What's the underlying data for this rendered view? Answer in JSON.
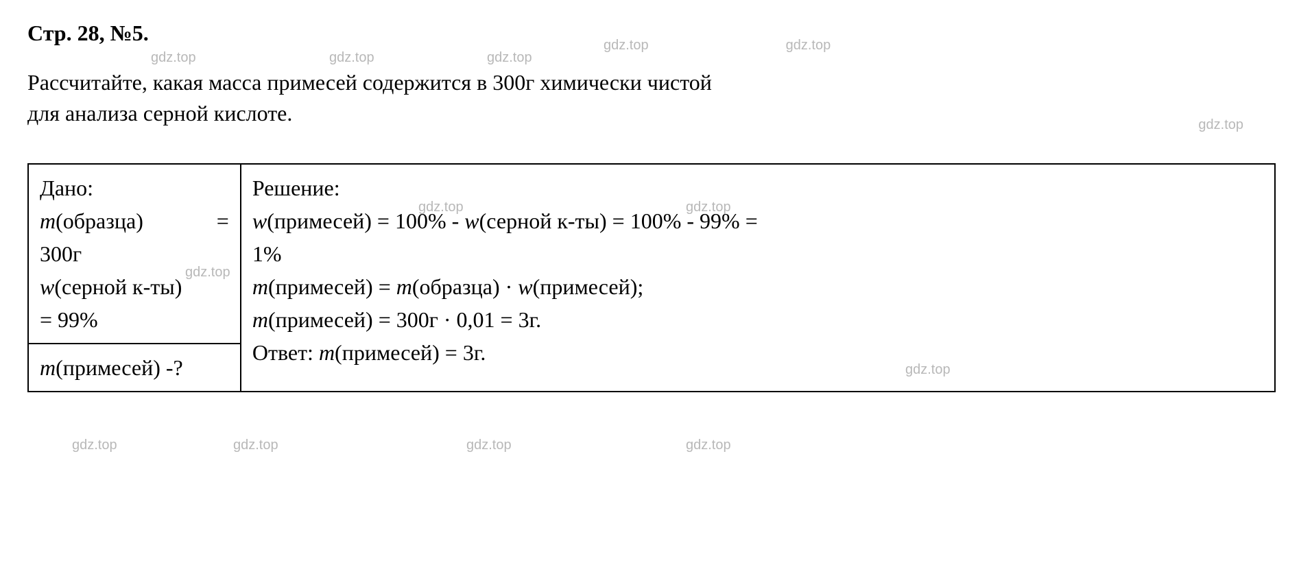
{
  "header": "Стр. 28, №5.",
  "watermark": "gdz.top",
  "problem": {
    "line1": "Рассчитайте, какая масса примесей содержится в 300г химически чистой",
    "line2": "для анализа серной кислоте."
  },
  "given": {
    "title": "Дано:",
    "line1_prefix": "m",
    "line1_text": "(образца)",
    "line1_eq": "=",
    "line2": "300г",
    "line3_prefix": "w",
    "line3_text": "(серной  к-ты)",
    "line4": "= 99%",
    "question_prefix": "m",
    "question_text": "(примесей) -?"
  },
  "solution": {
    "title": "Решение:",
    "line1": "w(примесей) = 100% - w(серной к-ты) = 100% - 99% =",
    "line1_prefix": "w",
    "line1_body": "(примесей) = 100% - ",
    "line1_mid": "w",
    "line1_rest": "(серной к-ты) = 100% - 99% =",
    "line2": "1%",
    "line3_p1": "m",
    "line3_p2": "(примесей) = ",
    "line3_p3": "m",
    "line3_p4": "(образца) · ",
    "line3_p5": "w",
    "line3_p6": "(примесей);",
    "line4_p1": "m",
    "line4_p2": "(примесей) = 300г · 0,01 = 3г.",
    "line5_p1": "Ответ: ",
    "line5_p2": "m",
    "line5_p3": "(примесей) = 3г."
  },
  "colors": {
    "text": "#000000",
    "watermark": "#b8b8b8",
    "background": "#ffffff",
    "border": "#000000"
  },
  "typography": {
    "header_fontsize": 32,
    "body_fontsize": 32,
    "watermark_fontsize": 20,
    "font_family": "Times New Roman"
  }
}
